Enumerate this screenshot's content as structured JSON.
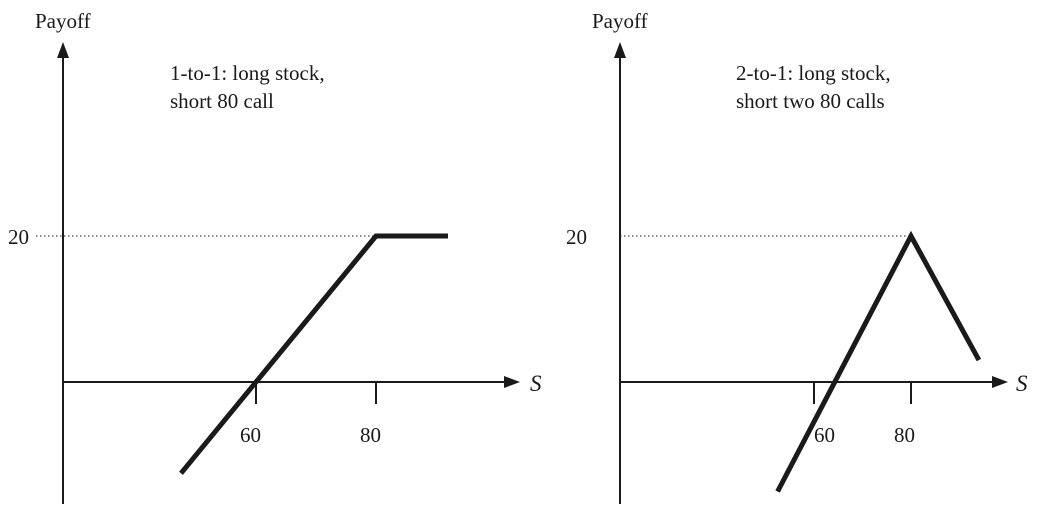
{
  "chart_data": [
    {
      "type": "line",
      "ylabel": "Payoff",
      "xlabel": "S",
      "annotation": [
        "1-to-1: long stock,",
        "short 80 call"
      ],
      "x_ticks": [
        "60",
        "80"
      ],
      "y_ticks": [
        "20"
      ],
      "reference_line": {
        "y": 20
      },
      "series": [
        {
          "x": [
            47.5,
            80,
            92
          ],
          "y": [
            -12.5,
            20,
            20
          ]
        }
      ]
    },
    {
      "type": "line",
      "ylabel": "Payoff",
      "xlabel": "S",
      "annotation": [
        "2-to-1: long stock,",
        "short two 80 calls"
      ],
      "x_ticks": [
        "60",
        "80"
      ],
      "y_ticks": [
        "20"
      ],
      "reference_line": {
        "y": 20
      },
      "series": [
        {
          "x": [
            52.5,
            80,
            94
          ],
          "y": [
            -15,
            20,
            3
          ]
        }
      ]
    }
  ]
}
